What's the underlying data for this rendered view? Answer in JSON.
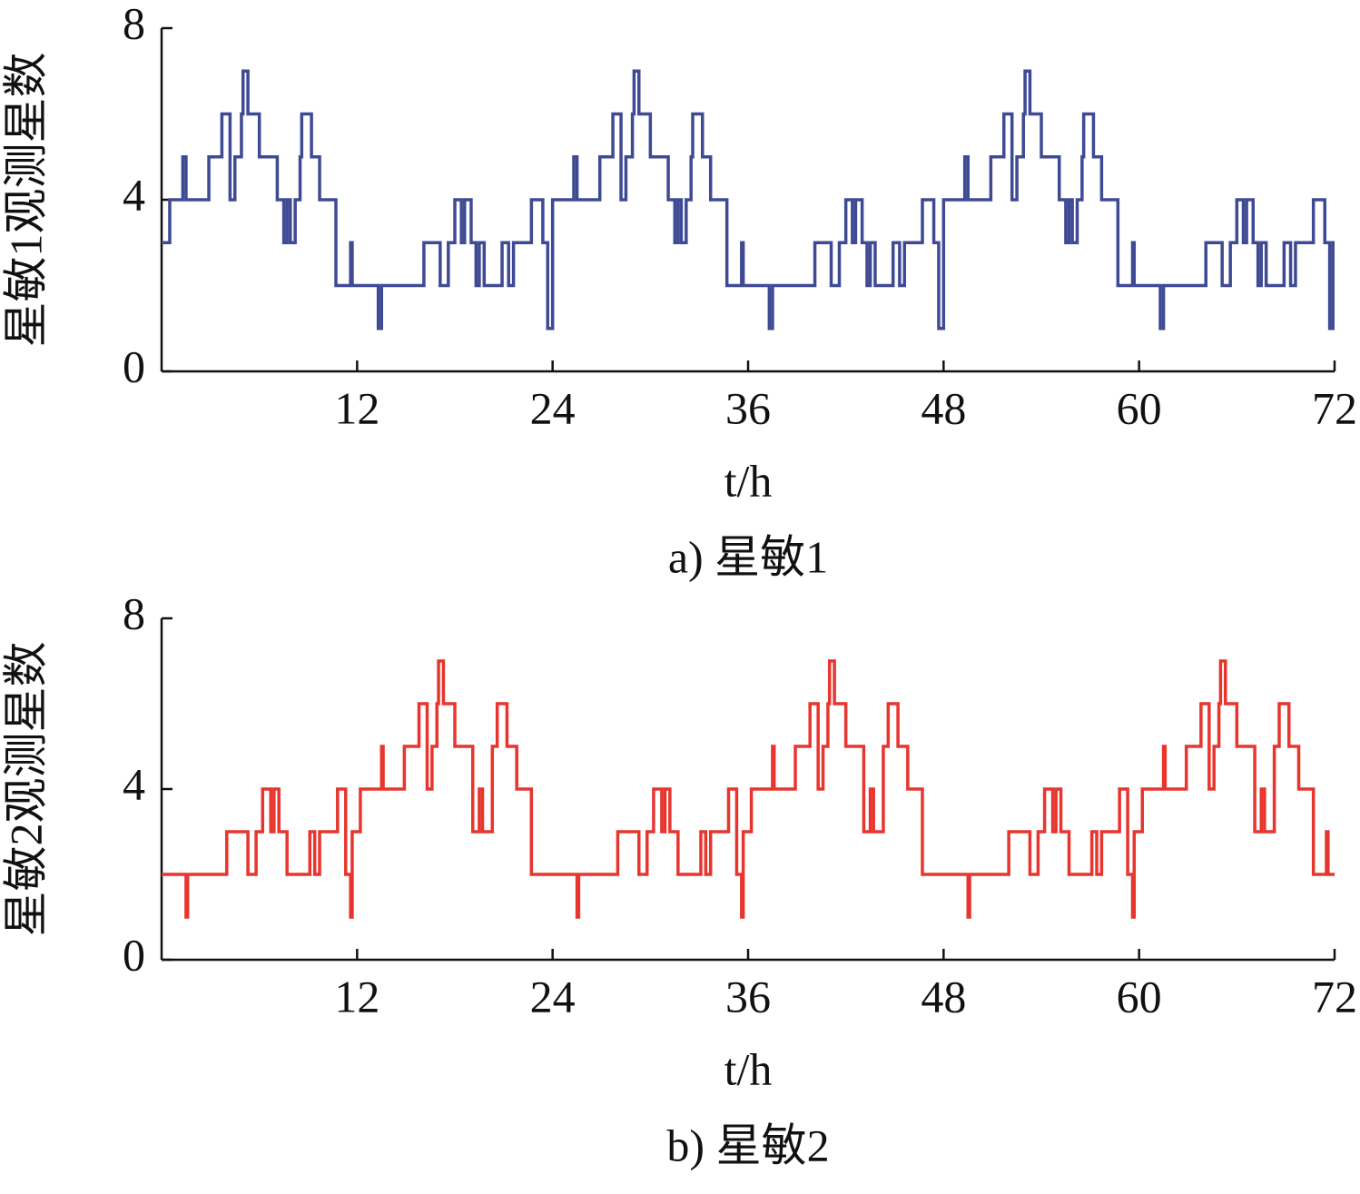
{
  "chart_data": [
    {
      "type": "line",
      "step": true,
      "caption": "a) 星敏1",
      "ylabel": "星敏1观测星数",
      "xlabel": "t/h",
      "xlim": [
        0,
        72
      ],
      "xticks": [
        12,
        24,
        36,
        48,
        60,
        72
      ],
      "ylim": [
        0,
        8
      ],
      "yticks": [
        0,
        4,
        8
      ],
      "series": [
        {
          "name": "星敏1",
          "color": "#3f4a94",
          "x": [
            0,
            0.5,
            1.3,
            1.5,
            2.9,
            3.7,
            4.2,
            4.5,
            4.9,
            5.0,
            5.3,
            6.0,
            7.1,
            7.5,
            7.7,
            7.9,
            8.2,
            8.5,
            8.6,
            9.2,
            9.7,
            10.7,
            11.6,
            11.7,
            13.3,
            13.5,
            16.1,
            17.1,
            17.6,
            18.0,
            18.4,
            18.6,
            19.0,
            19.3,
            19.5,
            19.8,
            20.9,
            21.3,
            21.6,
            22.7,
            23.4,
            23.7,
            24,
            25.3,
            25.5,
            26.9,
            27.7,
            28.2,
            28.5,
            28.9,
            29.0,
            29.3,
            30.0,
            31.1,
            31.5,
            31.7,
            31.9,
            32.2,
            32.5,
            32.6,
            33.2,
            33.7,
            34.7,
            35.6,
            35.7,
            37.3,
            37.5,
            40.1,
            41.1,
            41.6,
            42.0,
            42.4,
            42.6,
            43.0,
            43.3,
            43.5,
            43.8,
            44.9,
            45.3,
            45.6,
            46.7,
            47.4,
            47.7,
            48,
            49.3,
            49.5,
            50.9,
            51.7,
            52.2,
            52.5,
            52.9,
            53.0,
            53.3,
            54.0,
            55.1,
            55.5,
            55.7,
            55.9,
            56.2,
            56.5,
            56.6,
            57.2,
            57.7,
            58.7,
            59.6,
            59.7,
            61.3,
            61.5,
            64.1,
            65.1,
            65.6,
            66.0,
            66.4,
            66.6,
            67.0,
            67.3,
            67.5,
            67.8,
            68.9,
            69.3,
            69.6,
            70.7,
            71.4,
            71.7,
            71.9,
            72
          ],
          "values": [
            3,
            4,
            5,
            4,
            5,
            6,
            4,
            5,
            6,
            7,
            6,
            5,
            4,
            3,
            4,
            3,
            4,
            5,
            6,
            5,
            4,
            2,
            3,
            2,
            1,
            2,
            3,
            2,
            3,
            4,
            3,
            4,
            3,
            2,
            3,
            2,
            3,
            2,
            3,
            4,
            3,
            1,
            4,
            5,
            4,
            5,
            6,
            4,
            5,
            6,
            7,
            6,
            5,
            4,
            3,
            4,
            3,
            4,
            5,
            6,
            5,
            4,
            2,
            3,
            2,
            1,
            2,
            3,
            2,
            3,
            4,
            3,
            4,
            3,
            2,
            3,
            2,
            3,
            2,
            3,
            4,
            3,
            1,
            4,
            5,
            4,
            5,
            6,
            4,
            5,
            6,
            7,
            6,
            5,
            4,
            3,
            4,
            3,
            4,
            5,
            6,
            5,
            4,
            2,
            3,
            2,
            1,
            2,
            3,
            2,
            3,
            4,
            3,
            4,
            3,
            2,
            3,
            2,
            3,
            2,
            3,
            4,
            3,
            1,
            3,
            3
          ]
        }
      ]
    },
    {
      "type": "line",
      "step": true,
      "caption": "b) 星敏2",
      "ylabel": "星敏2观测星数",
      "xlabel": "t/h",
      "xlim": [
        0,
        72
      ],
      "xticks": [
        12,
        24,
        36,
        48,
        60,
        72
      ],
      "ylim": [
        0,
        8
      ],
      "yticks": [
        0,
        4,
        8
      ],
      "series": [
        {
          "name": "星敏2",
          "color": "#e8352e",
          "x": [
            0,
            1.5,
            1.6,
            4.0,
            5.3,
            5.8,
            6.2,
            6.7,
            6.9,
            7.2,
            7.7,
            9.1,
            9.4,
            9.7,
            10.8,
            11.3,
            11.6,
            11.7,
            12.2,
            13.5,
            13.6,
            14.9,
            15.8,
            16.3,
            16.6,
            16.9,
            17.0,
            17.3,
            18.0,
            19.1,
            19.5,
            19.7,
            20.3,
            20.6,
            21.2,
            21.8,
            22.7,
            25.5,
            25.6,
            28.0,
            29.3,
            29.8,
            30.2,
            30.7,
            30.9,
            31.2,
            31.7,
            33.1,
            33.4,
            33.7,
            34.8,
            35.3,
            35.6,
            35.7,
            36.2,
            37.5,
            37.6,
            38.9,
            39.8,
            40.3,
            40.6,
            40.9,
            41.0,
            41.3,
            42.0,
            43.1,
            43.5,
            43.7,
            44.3,
            44.6,
            45.2,
            45.8,
            46.7,
            49.5,
            49.6,
            52.0,
            53.3,
            53.8,
            54.2,
            54.7,
            54.9,
            55.2,
            55.7,
            57.1,
            57.4,
            57.7,
            58.8,
            59.3,
            59.6,
            59.7,
            60.2,
            61.5,
            61.6,
            62.9,
            63.8,
            64.3,
            64.6,
            64.9,
            65.0,
            65.3,
            66.0,
            67.1,
            67.5,
            67.7,
            68.3,
            68.6,
            69.2,
            69.8,
            70.7,
            71.5,
            71.6,
            72
          ],
          "values": [
            2,
            1,
            2,
            3,
            2,
            3,
            4,
            3,
            4,
            3,
            2,
            3,
            2,
            3,
            4,
            2,
            1,
            3,
            4,
            5,
            4,
            5,
            6,
            4,
            5,
            6,
            7,
            6,
            5,
            3,
            4,
            3,
            5,
            6,
            5,
            4,
            2,
            1,
            2,
            3,
            2,
            3,
            4,
            3,
            4,
            3,
            2,
            3,
            2,
            3,
            4,
            2,
            1,
            3,
            4,
            5,
            4,
            5,
            6,
            4,
            5,
            6,
            7,
            6,
            5,
            3,
            4,
            3,
            5,
            6,
            5,
            4,
            2,
            1,
            2,
            3,
            2,
            3,
            4,
            3,
            4,
            3,
            2,
            3,
            2,
            3,
            4,
            2,
            1,
            3,
            4,
            5,
            4,
            5,
            6,
            4,
            5,
            6,
            7,
            6,
            5,
            3,
            4,
            3,
            5,
            6,
            5,
            4,
            2,
            3,
            2,
            2
          ]
        }
      ]
    }
  ]
}
